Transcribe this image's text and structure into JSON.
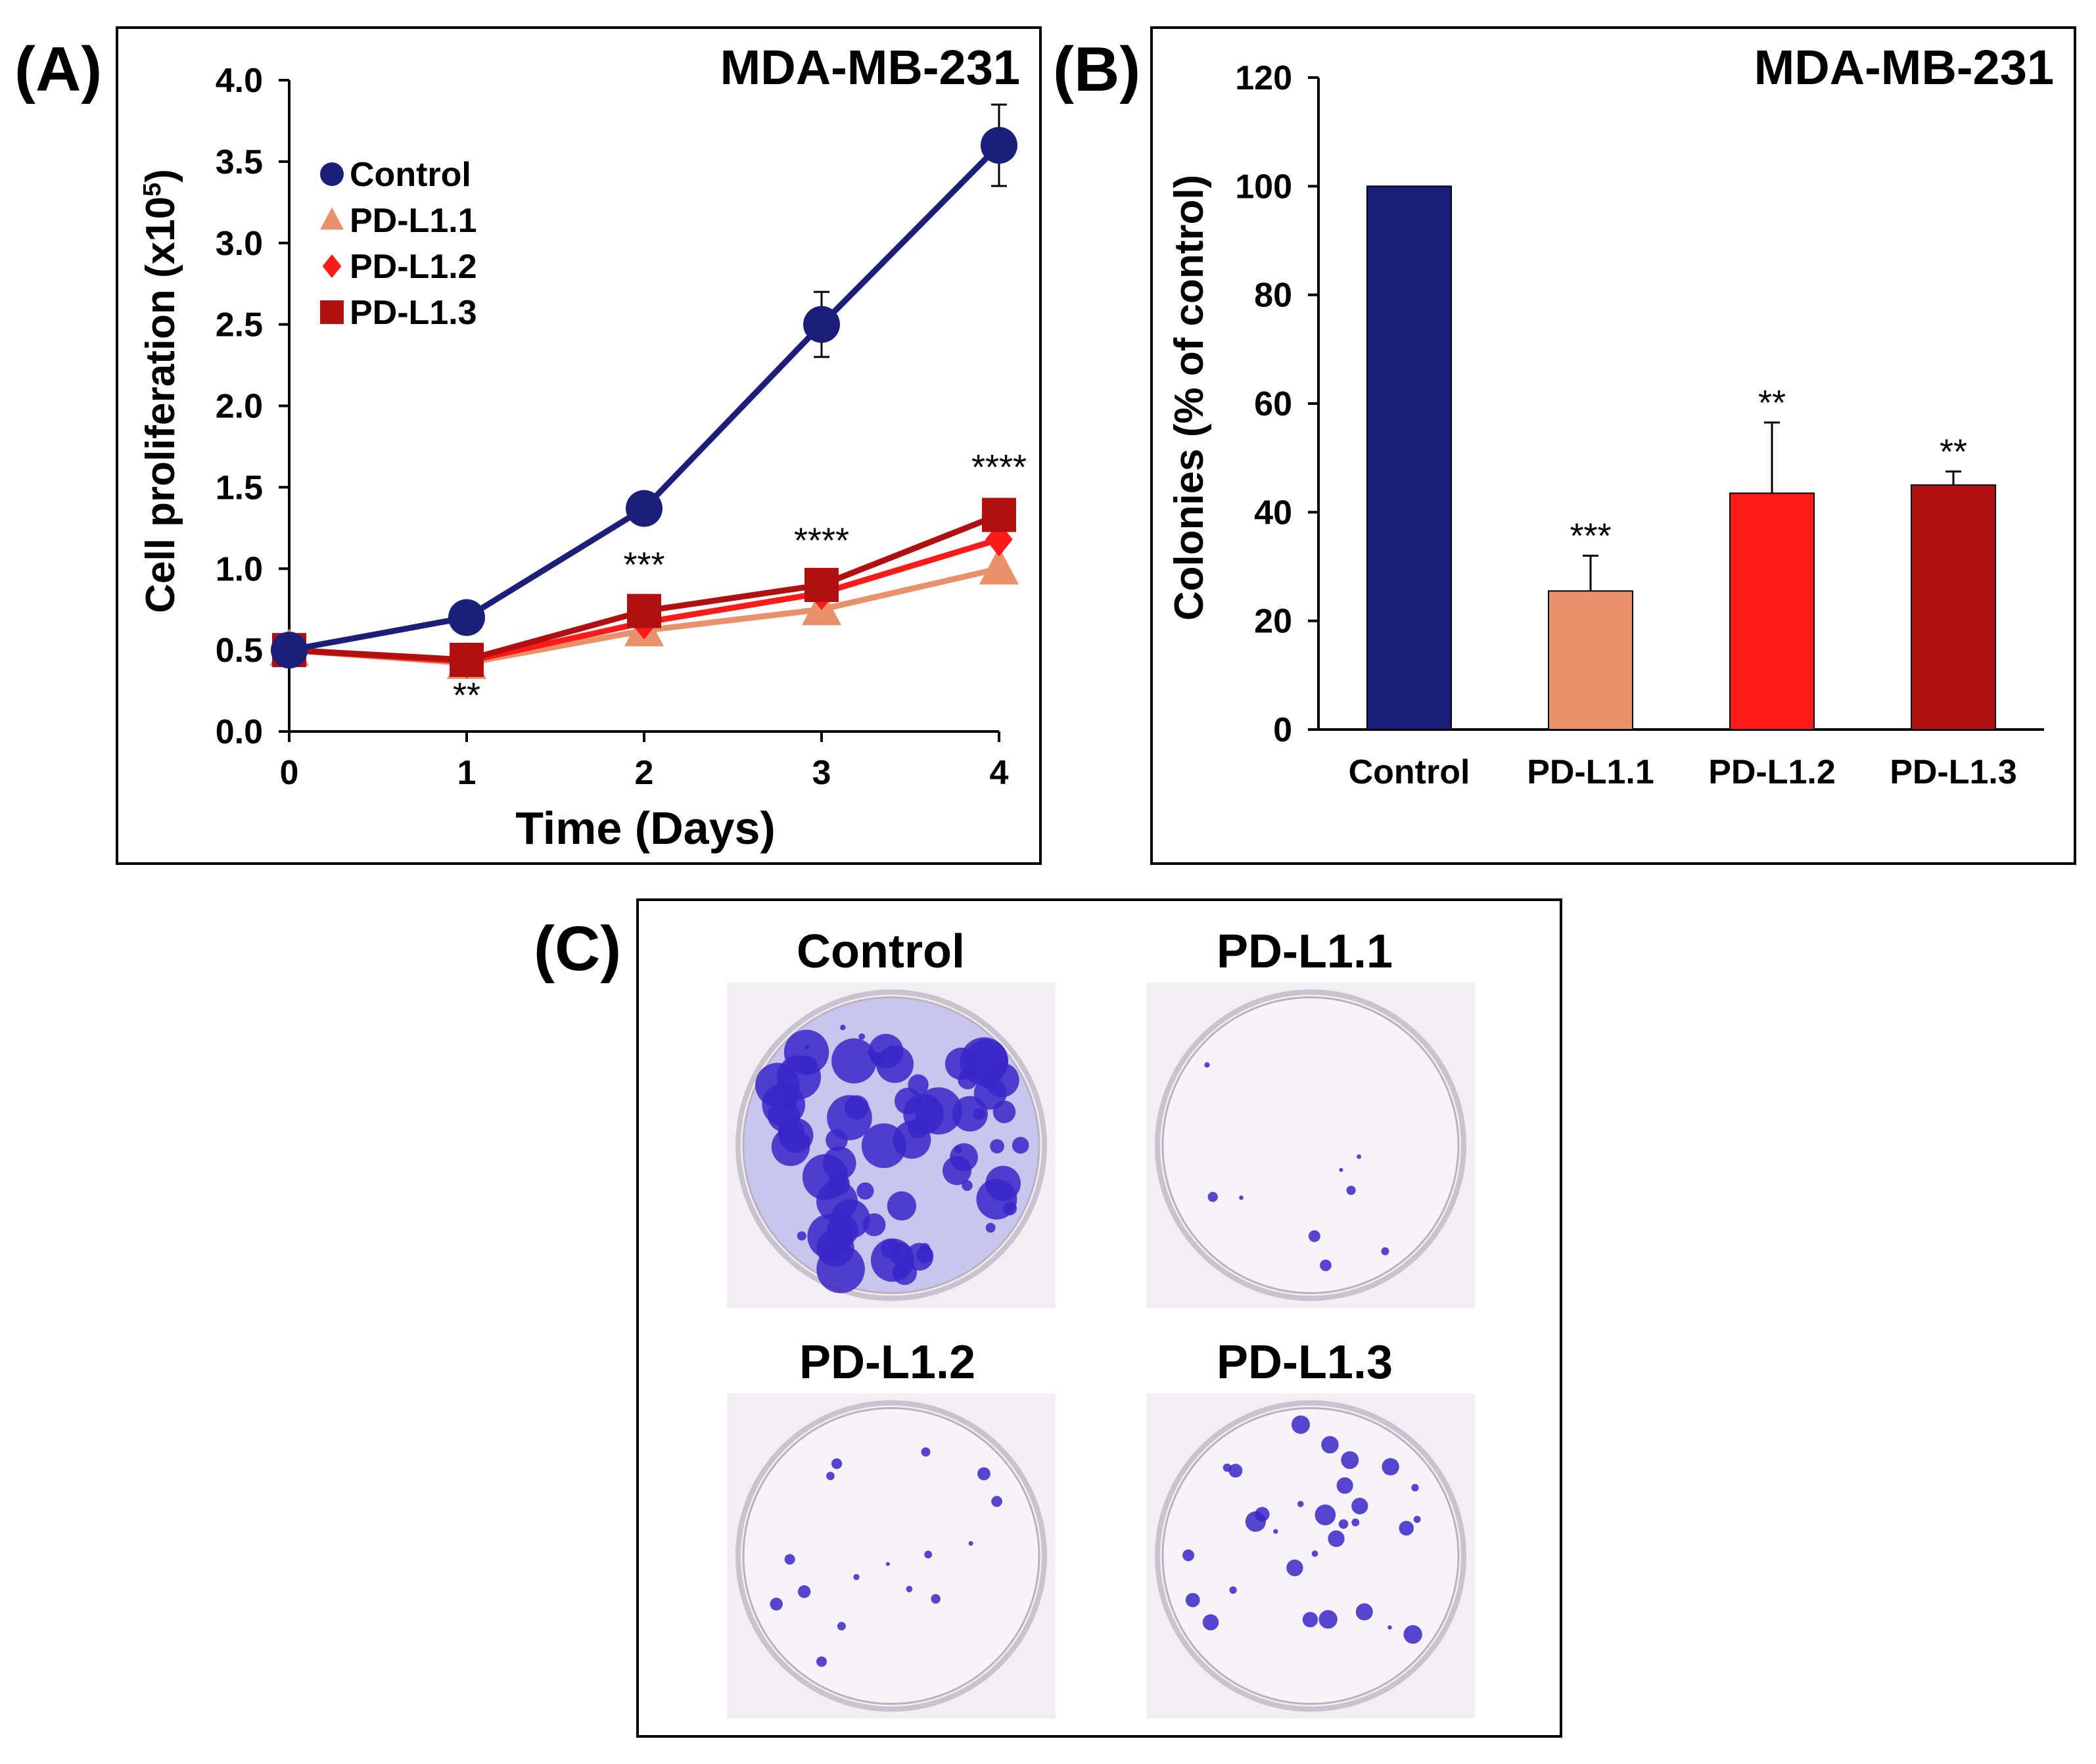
{
  "panel_labels": {
    "a": "(A)",
    "b": "(B)",
    "c": "(C)"
  },
  "colors": {
    "control": "#1b1f7a",
    "pdl11": "#e8916a",
    "pdl12": "#ff1a1a",
    "pdl13": "#b01010",
    "stain": "#3a26c8",
    "well_bg": "#f3eef3"
  },
  "chart_data": [
    {
      "type": "line",
      "title": "MDA-MB-231",
      "xlabel": "Time (Days)",
      "ylabel": "Cell proliferation (x10",
      "ylabel_sup": "5",
      "ylabel_end": ")",
      "x": [
        0,
        1,
        2,
        3,
        4
      ],
      "xticks": [
        "0",
        "1",
        "2",
        "3",
        "4"
      ],
      "ylim": [
        0,
        4.0
      ],
      "yticks": [
        "0.0",
        "0.5",
        "1.0",
        "1.5",
        "2.0",
        "2.5",
        "3.0",
        "3.5",
        "4.0"
      ],
      "series": [
        {
          "name": "Control",
          "values": [
            0.5,
            0.7,
            1.37,
            2.5,
            3.6
          ],
          "errors": [
            0,
            0.02,
            0.04,
            0.2,
            0.25
          ],
          "marker": "circle",
          "color": "#1b1f7a"
        },
        {
          "name": "PD-L1.1",
          "values": [
            0.5,
            0.42,
            0.62,
            0.75,
            1.0
          ],
          "errors": [
            0,
            0,
            0,
            0,
            0
          ],
          "marker": "triangle",
          "color": "#e8916a"
        },
        {
          "name": "PD-L1.2",
          "values": [
            0.5,
            0.43,
            0.67,
            0.85,
            1.18
          ],
          "errors": [
            0,
            0,
            0,
            0,
            0
          ],
          "marker": "diamond",
          "color": "#ff1a1a"
        },
        {
          "name": "PD-L1.3",
          "values": [
            0.5,
            0.44,
            0.74,
            0.9,
            1.33
          ],
          "errors": [
            0,
            0,
            0,
            0,
            0
          ],
          "marker": "square",
          "color": "#b01010"
        }
      ],
      "annotations": [
        {
          "x": 1,
          "y": 0.15,
          "text": "**"
        },
        {
          "x": 2,
          "y": 0.95,
          "text": "***"
        },
        {
          "x": 3,
          "y": 1.1,
          "text": "****"
        },
        {
          "x": 4,
          "y": 1.55,
          "text": "****"
        }
      ],
      "legend": "upper-left"
    },
    {
      "type": "bar",
      "title": "MDA-MB-231",
      "xlabel": "",
      "ylabel": "Colonies (% of control)",
      "categories": [
        "Control",
        "PD-L1.1",
        "PD-L1.2",
        "PD-L1.3"
      ],
      "values": [
        100,
        25.5,
        43.5,
        45
      ],
      "errors": [
        0,
        6.5,
        13,
        2.5
      ],
      "colors": [
        "#1b1f7a",
        "#e8916a",
        "#ff1a1a",
        "#b01010"
      ],
      "significance": [
        "",
        "***",
        "**",
        "**"
      ],
      "ylim": [
        0,
        120
      ],
      "yticks": [
        "0",
        "20",
        "40",
        "60",
        "80",
        "100",
        "120"
      ]
    }
  ],
  "panel_c": {
    "wells": [
      {
        "label": "Control",
        "density": "high"
      },
      {
        "label": "PD-L1.1",
        "density": "very-low"
      },
      {
        "label": "PD-L1.2",
        "density": "low"
      },
      {
        "label": "PD-L1.3",
        "density": "medium"
      }
    ]
  }
}
